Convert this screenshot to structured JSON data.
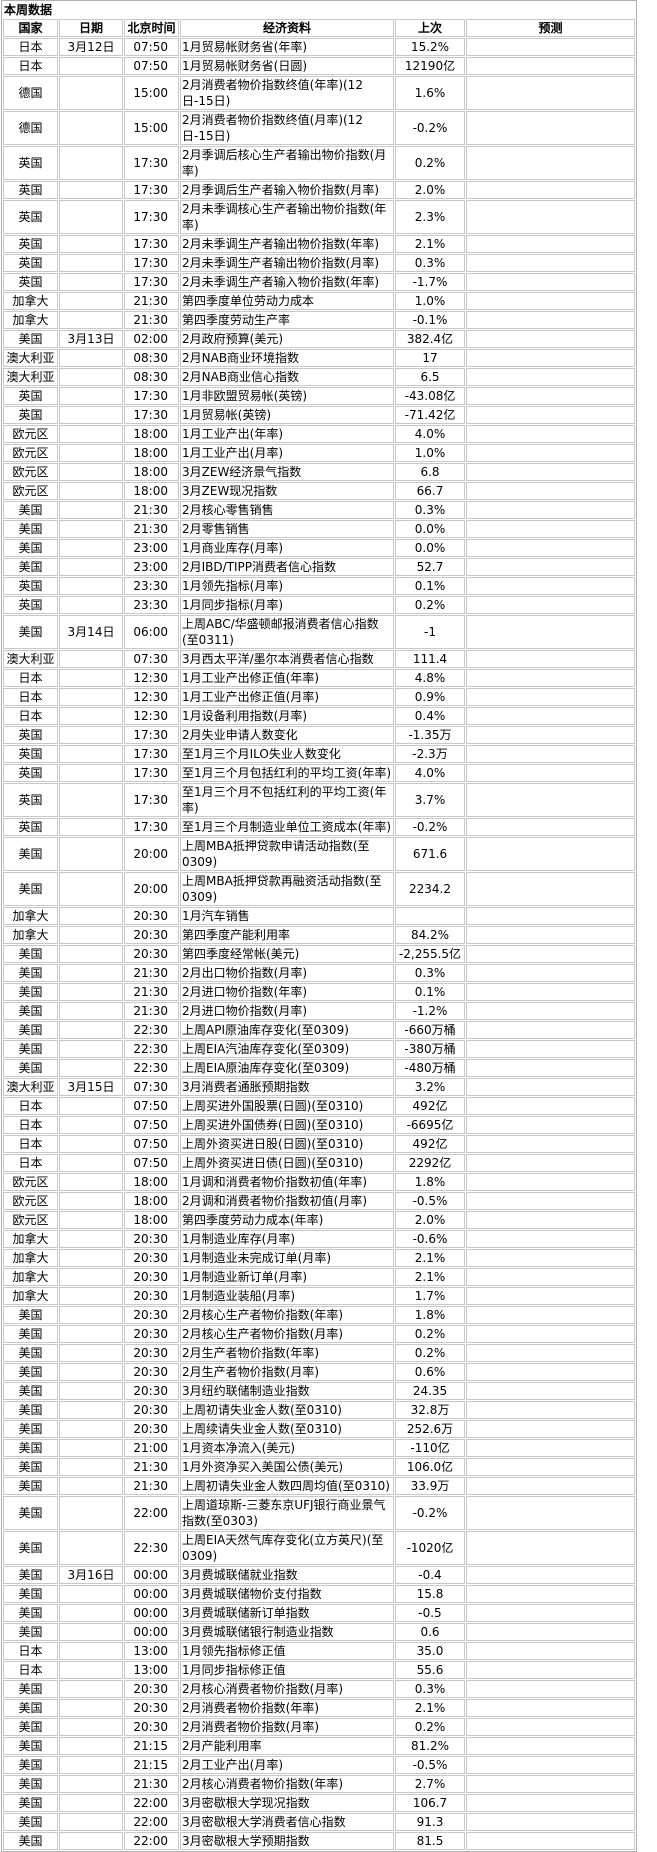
{
  "title": "本周数据",
  "headers": {
    "country": "国家",
    "date": "日期",
    "time": "北京时间",
    "item": "经济资料",
    "previous": "上次",
    "forecast": "预测"
  },
  "rows": [
    [
      "日本",
      "3月12日",
      "07:50",
      "1月贸易帐财务省(年率)",
      "15.2%",
      ""
    ],
    [
      "日本",
      "",
      "07:50",
      "1月贸易帐财务省(日圆)",
      "12190亿",
      ""
    ],
    [
      "德国",
      "",
      "15:00",
      "2月消费者物价指数终值(年率)(12日-15日)",
      "1.6%",
      ""
    ],
    [
      "德国",
      "",
      "15:00",
      "2月消费者物价指数终值(月率)(12日-15日)",
      "-0.2%",
      ""
    ],
    [
      "英国",
      "",
      "17:30",
      "2月季调后核心生产者输出物价指数(月率)",
      "0.2%",
      ""
    ],
    [
      "英国",
      "",
      "17:30",
      "2月季调后生产者输入物价指数(月率)",
      "2.0%",
      ""
    ],
    [
      "英国",
      "",
      "17:30",
      "2月未季调核心生产者输出物价指数(年率)",
      "2.3%",
      ""
    ],
    [
      "英国",
      "",
      "17:30",
      "2月未季调生产者输出物价指数(年率)",
      "2.1%",
      ""
    ],
    [
      "英国",
      "",
      "17:30",
      "2月未季调生产者输出物价指数(月率)",
      "0.3%",
      ""
    ],
    [
      "英国",
      "",
      "17:30",
      "2月未季调生产者输入物价指数(年率)",
      "-1.7%",
      ""
    ],
    [
      "加拿大",
      "",
      "21:30",
      "第四季度单位劳动力成本",
      "1.0%",
      ""
    ],
    [
      "加拿大",
      "",
      "21:30",
      "第四季度劳动生产率",
      "-0.1%",
      ""
    ],
    [
      "美国",
      "3月13日",
      "02:00",
      "2月政府预算(美元)",
      "382.4亿",
      ""
    ],
    [
      "澳大利亚",
      "",
      "08:30",
      "2月NAB商业环境指数",
      "17",
      ""
    ],
    [
      "澳大利亚",
      "",
      "08:30",
      "2月NAB商业信心指数",
      "6.5",
      ""
    ],
    [
      "英国",
      "",
      "17:30",
      "1月非欧盟贸易帐(英镑)",
      "-43.08亿",
      ""
    ],
    [
      "英国",
      "",
      "17:30",
      "1月贸易帐(英镑)",
      "-71.42亿",
      ""
    ],
    [
      "欧元区",
      "",
      "18:00",
      "1月工业产出(年率)",
      "4.0%",
      ""
    ],
    [
      "欧元区",
      "",
      "18:00",
      "1月工业产出(月率)",
      "1.0%",
      ""
    ],
    [
      "欧元区",
      "",
      "18:00",
      "3月ZEW经济景气指数",
      "6.8",
      ""
    ],
    [
      "欧元区",
      "",
      "18:00",
      "3月ZEW现况指数",
      "66.7",
      ""
    ],
    [
      "美国",
      "",
      "21:30",
      "2月核心零售销售",
      "0.3%",
      ""
    ],
    [
      "美国",
      "",
      "21:30",
      "2月零售销售",
      "0.0%",
      ""
    ],
    [
      "美国",
      "",
      "23:00",
      "1月商业库存(月率)",
      "0.0%",
      ""
    ],
    [
      "美国",
      "",
      "23:00",
      "2月IBD/TIPP消费者信心指数",
      "52.7",
      ""
    ],
    [
      "英国",
      "",
      "23:30",
      "1月领先指标(月率)",
      "0.1%",
      ""
    ],
    [
      "英国",
      "",
      "23:30",
      "1月同步指标(月率)",
      "0.2%",
      ""
    ],
    [
      "美国",
      "3月14日",
      "06:00",
      "上周ABC/华盛顿邮报消费者信心指数(至0311)",
      "-1",
      ""
    ],
    [
      "澳大利亚",
      "",
      "07:30",
      "3月西太平洋/墨尔本消费者信心指数",
      "111.4",
      ""
    ],
    [
      "日本",
      "",
      "12:30",
      "1月工业产出修正值(年率)",
      "4.8%",
      ""
    ],
    [
      "日本",
      "",
      "12:30",
      "1月工业产出修正值(月率)",
      "0.9%",
      ""
    ],
    [
      "日本",
      "",
      "12:30",
      "1月设备利用指数(月率)",
      "0.4%",
      ""
    ],
    [
      "英国",
      "",
      "17:30",
      "2月失业申请人数变化",
      "-1.35万",
      ""
    ],
    [
      "英国",
      "",
      "17:30",
      "至1月三个月ILO失业人数变化",
      "-2.3万",
      ""
    ],
    [
      "英国",
      "",
      "17:30",
      "至1月三个月包括红利的平均工资(年率)",
      "4.0%",
      ""
    ],
    [
      "英国",
      "",
      "17:30",
      "至1月三个月不包括红利的平均工资(年率)",
      "3.7%",
      ""
    ],
    [
      "英国",
      "",
      "17:30",
      "至1月三个月制造业单位工资成本(年率)",
      "-0.2%",
      ""
    ],
    [
      "美国",
      "",
      "20:00",
      "上周MBA抵押贷款申请活动指数(至0309)",
      "671.6",
      ""
    ],
    [
      "美国",
      "",
      "20:00",
      "上周MBA抵押贷款再融资活动指数(至0309)",
      "2234.2",
      ""
    ],
    [
      "加拿大",
      "",
      "20:30",
      "1月汽车销售",
      "",
      ""
    ],
    [
      "加拿大",
      "",
      "20:30",
      "第四季度产能利用率",
      "84.2%",
      ""
    ],
    [
      "美国",
      "",
      "20:30",
      "第四季度经常帐(美元)",
      "-2,255.5亿",
      ""
    ],
    [
      "美国",
      "",
      "21:30",
      "2月出口物价指数(月率)",
      "0.3%",
      ""
    ],
    [
      "美国",
      "",
      "21:30",
      "2月进口物价指数(年率)",
      "0.1%",
      ""
    ],
    [
      "美国",
      "",
      "21:30",
      "2月进口物价指数(月率)",
      "-1.2%",
      ""
    ],
    [
      "美国",
      "",
      "22:30",
      "上周API原油库存变化(至0309)",
      "-660万桶",
      ""
    ],
    [
      "美国",
      "",
      "22:30",
      "上周EIA汽油库存变化(至0309)",
      "-380万桶",
      ""
    ],
    [
      "美国",
      "",
      "22:30",
      "上周EIA原油库存变化(至0309)",
      "-480万桶",
      ""
    ],
    [
      "澳大利亚",
      "3月15日",
      "07:30",
      "3月消费者通胀预期指数",
      "3.2%",
      ""
    ],
    [
      "日本",
      "",
      "07:50",
      "上周买进外国股票(日圆)(至0310)",
      "492亿",
      ""
    ],
    [
      "日本",
      "",
      "07:50",
      "上周买进外国债券(日圆)(至0310)",
      "-6695亿",
      ""
    ],
    [
      "日本",
      "",
      "07:50",
      "上周外资买进日股(日圆)(至0310)",
      "492亿",
      ""
    ],
    [
      "日本",
      "",
      "07:50",
      "上周外资买进日债(日圆)(至0310)",
      "2292亿",
      ""
    ],
    [
      "欧元区",
      "",
      "18:00",
      "1月调和消费者物价指数初值(年率)",
      "1.8%",
      ""
    ],
    [
      "欧元区",
      "",
      "18:00",
      "2月调和消费者物价指数初值(月率)",
      "-0.5%",
      ""
    ],
    [
      "欧元区",
      "",
      "18:00",
      "第四季度劳动力成本(年率)",
      "2.0%",
      ""
    ],
    [
      "加拿大",
      "",
      "20:30",
      "1月制造业库存(月率)",
      "-0.6%",
      ""
    ],
    [
      "加拿大",
      "",
      "20:30",
      "1月制造业未完成订单(月率)",
      "2.1%",
      ""
    ],
    [
      "加拿大",
      "",
      "20:30",
      "1月制造业新订单(月率)",
      "2.1%",
      ""
    ],
    [
      "加拿大",
      "",
      "20:30",
      "1月制造业装船(月率)",
      "1.7%",
      ""
    ],
    [
      "美国",
      "",
      "20:30",
      "2月核心生产者物价指数(年率)",
      "1.8%",
      ""
    ],
    [
      "美国",
      "",
      "20:30",
      "2月核心生产者物价指数(月率)",
      "0.2%",
      ""
    ],
    [
      "美国",
      "",
      "20:30",
      "2月生产者物价指数(年率)",
      "0.2%",
      ""
    ],
    [
      "美国",
      "",
      "20:30",
      "2月生产者物价指数(月率)",
      "0.6%",
      ""
    ],
    [
      "美国",
      "",
      "20:30",
      "3月纽约联储制造业指数",
      "24.35",
      ""
    ],
    [
      "美国",
      "",
      "20:30",
      "上周初请失业金人数(至0310)",
      "32.8万",
      ""
    ],
    [
      "美国",
      "",
      "20:30",
      "上周续请失业金人数(至0310)",
      "252.6万",
      ""
    ],
    [
      "美国",
      "",
      "21:00",
      "1月资本净流入(美元)",
      "-110亿",
      ""
    ],
    [
      "美国",
      "",
      "21:30",
      "1月外资净买入美国公债(美元)",
      "106.0亿",
      ""
    ],
    [
      "美国",
      "",
      "21:30",
      "上周初请失业金人数四周均值(至0310)",
      "33.9万",
      ""
    ],
    [
      "美国",
      "",
      "22:00",
      "上周道琼斯-三菱东京UFJ银行商业景气指数(至0303)",
      "-0.2%",
      ""
    ],
    [
      "美国",
      "",
      "22:30",
      "上周EIA天然气库存变化(立方英尺)(至0309)",
      "-1020亿",
      ""
    ],
    [
      "美国",
      "3月16日",
      "00:00",
      "3月费城联储就业指数",
      "-0.4",
      ""
    ],
    [
      "美国",
      "",
      "00:00",
      "3月费城联储物价支付指数",
      "15.8",
      ""
    ],
    [
      "美国",
      "",
      "00:00",
      "3月费城联储新订单指数",
      "-0.5",
      ""
    ],
    [
      "美国",
      "",
      "00:00",
      "3月费城联储银行制造业指数",
      "0.6",
      ""
    ],
    [
      "日本",
      "",
      "13:00",
      "1月领先指标修正值",
      "35.0",
      ""
    ],
    [
      "日本",
      "",
      "13:00",
      "1月同步指标修正值",
      "55.6",
      ""
    ],
    [
      "美国",
      "",
      "20:30",
      "2月核心消费者物价指数(月率)",
      "0.3%",
      ""
    ],
    [
      "美国",
      "",
      "20:30",
      "2月消费者物价指数(年率)",
      "2.1%",
      ""
    ],
    [
      "美国",
      "",
      "20:30",
      "2月消费者物价指数(月率)",
      "0.2%",
      ""
    ],
    [
      "美国",
      "",
      "21:15",
      "2月产能利用率",
      "81.2%",
      ""
    ],
    [
      "美国",
      "",
      "21:15",
      "2月工业产出(月率)",
      "-0.5%",
      ""
    ],
    [
      "美国",
      "",
      "21:30",
      "2月核心消费者物价指数(年率)",
      "2.7%",
      ""
    ],
    [
      "美国",
      "",
      "22:00",
      "3月密歇根大学现况指数",
      "106.7",
      ""
    ],
    [
      "美国",
      "",
      "22:00",
      "3月密歇根大学消费者信心指数",
      "91.3",
      ""
    ],
    [
      "美国",
      "",
      "22:00",
      "3月密歇根大学预期指数",
      "81.5",
      ""
    ]
  ]
}
